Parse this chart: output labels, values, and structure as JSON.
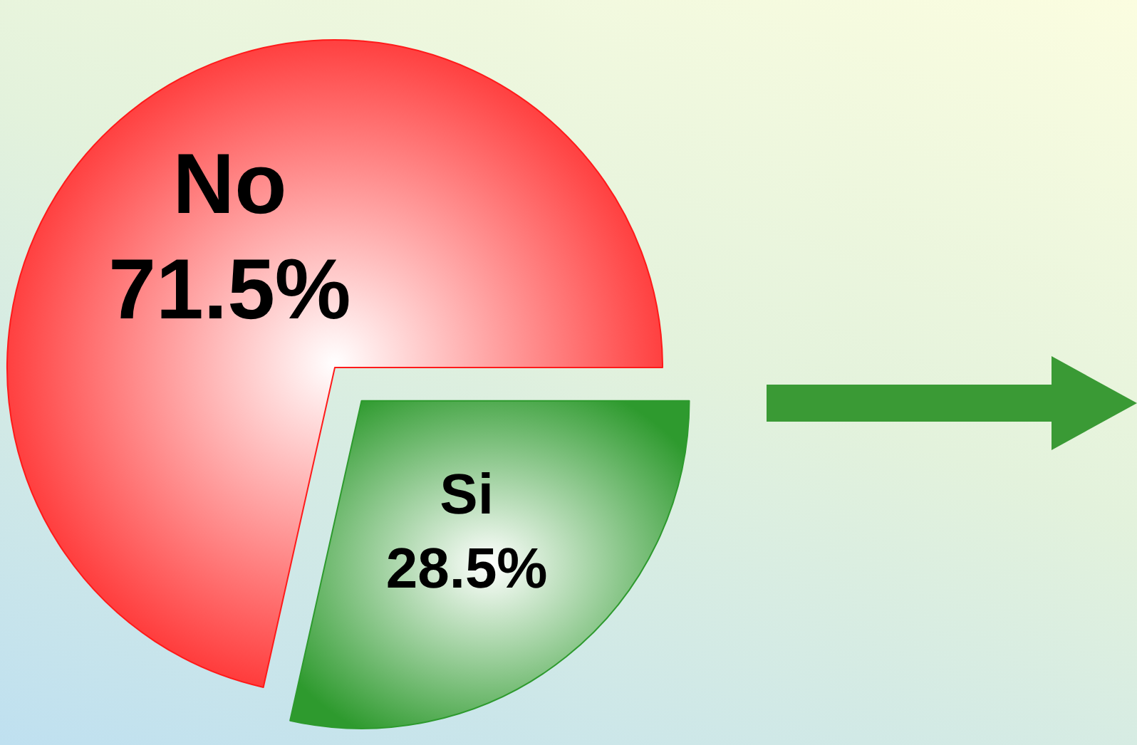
{
  "chart_data": {
    "type": "pie",
    "categories": [
      "No",
      "Si"
    ],
    "values": [
      71.5,
      28.5
    ],
    "value_labels": [
      "71.5%",
      "28.5%"
    ],
    "colors": [
      "#ff1a1a",
      "#2e9a2e"
    ],
    "legend": false
  }
}
